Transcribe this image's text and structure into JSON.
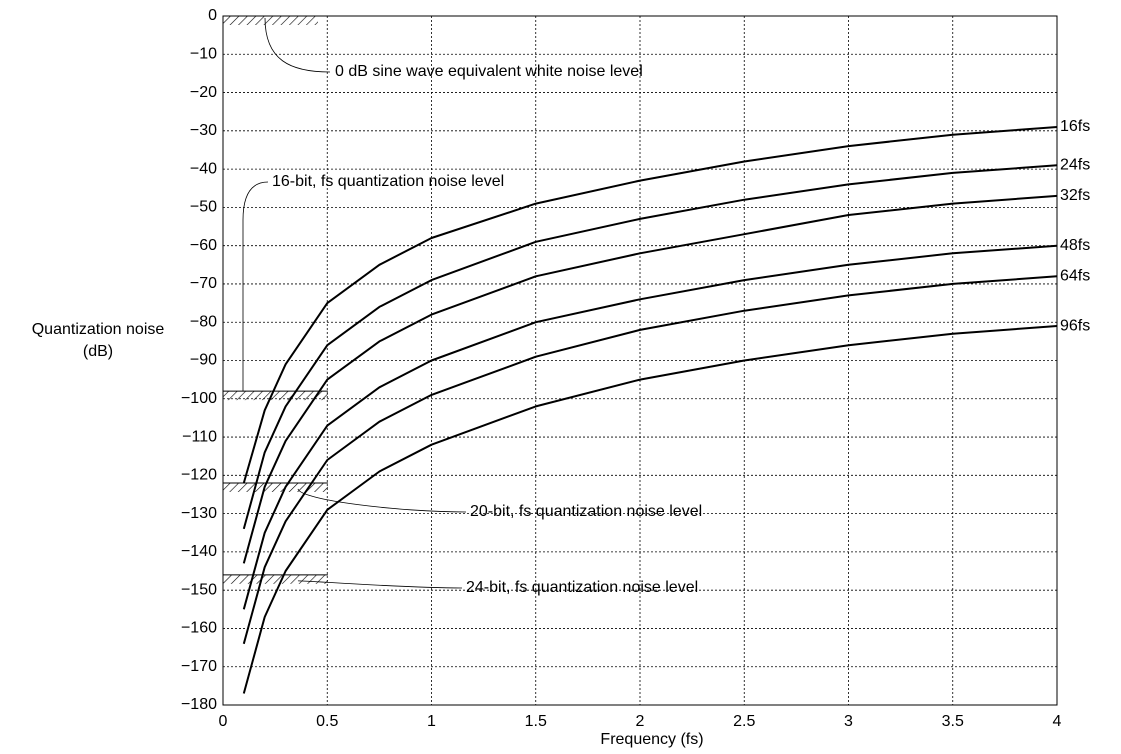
{
  "chart_data": {
    "type": "line",
    "xlabel": "Frequency (fs)",
    "ylabel": [
      "Quantization noise",
      "(dB)"
    ],
    "x": [
      0.1,
      0.2,
      0.3,
      0.5,
      0.75,
      1,
      1.5,
      2,
      2.5,
      3,
      3.5,
      4
    ],
    "series": [
      {
        "name": "16fs",
        "color": "#000000",
        "values": [
          -122,
          -103,
          -91,
          -75,
          -65,
          -58,
          -49,
          -43,
          -38,
          -34,
          -31,
          -29
        ]
      },
      {
        "name": "24fs",
        "color": "#000000",
        "values": [
          -134,
          -114,
          -102,
          -86,
          -76,
          -69,
          -59,
          -53,
          -48,
          -44,
          -41,
          -39
        ]
      },
      {
        "name": "32fs",
        "color": "#000000",
        "values": [
          -143,
          -123,
          -111,
          -95,
          -85,
          -78,
          -68,
          -62,
          -57,
          -52,
          -49,
          -47
        ]
      },
      {
        "name": "48fs",
        "color": "#000000",
        "values": [
          -155,
          -135,
          -123,
          -107,
          -97,
          -90,
          -80,
          -74,
          -69,
          -65,
          -62,
          -60
        ]
      },
      {
        "name": "64fs",
        "color": "#000000",
        "values": [
          -164,
          -144,
          -132,
          -116,
          -106,
          -99,
          -89,
          -82,
          -77,
          -73,
          -70,
          -68
        ]
      },
      {
        "name": "96fs",
        "color": "#000000",
        "values": [
          -177,
          -157,
          -145,
          -129,
          -119,
          -112,
          -102,
          -95,
          -90,
          -86,
          -83,
          -81
        ]
      }
    ],
    "annotations": [
      {
        "text": "0 dB sine wave equivalent white noise level",
        "y": 0
      },
      {
        "text": "16-bit, fs quantization noise level",
        "y": -98
      },
      {
        "text": "20-bit, fs quantization noise level",
        "y": -122
      },
      {
        "text": "24-bit, fs quantization noise level",
        "y": -146
      }
    ],
    "xlim": [
      0,
      4
    ],
    "ylim": [
      -180,
      0
    ],
    "xticks": [
      0,
      0.5,
      1,
      1.5,
      2,
      2.5,
      3,
      3.5,
      4
    ],
    "yticks": [
      0,
      {
        "value": -10,
        "label": "−10"
      },
      {
        "value": -20,
        "label": "−20"
      },
      {
        "value": -30,
        "label": "−30"
      },
      {
        "value": -40,
        "label": "−40"
      },
      {
        "value": -50,
        "label": "−50"
      },
      {
        "value": -60,
        "label": "−60"
      },
      {
        "value": -70,
        "label": "−70"
      },
      {
        "value": -80,
        "label": "−80"
      },
      {
        "value": -90,
        "label": "−90"
      },
      {
        "value": -100,
        "label": "−100"
      },
      {
        "value": -110,
        "label": "−110"
      },
      {
        "value": -120,
        "label": "−120"
      },
      {
        "value": -130,
        "label": "−130"
      },
      {
        "value": -140,
        "label": "−140"
      },
      {
        "value": -150,
        "label": "−150"
      },
      {
        "value": -160,
        "label": "−160"
      },
      {
        "value": -170,
        "label": "−170"
      },
      {
        "value": -180,
        "label": "−180"
      }
    ],
    "grid": true
  }
}
